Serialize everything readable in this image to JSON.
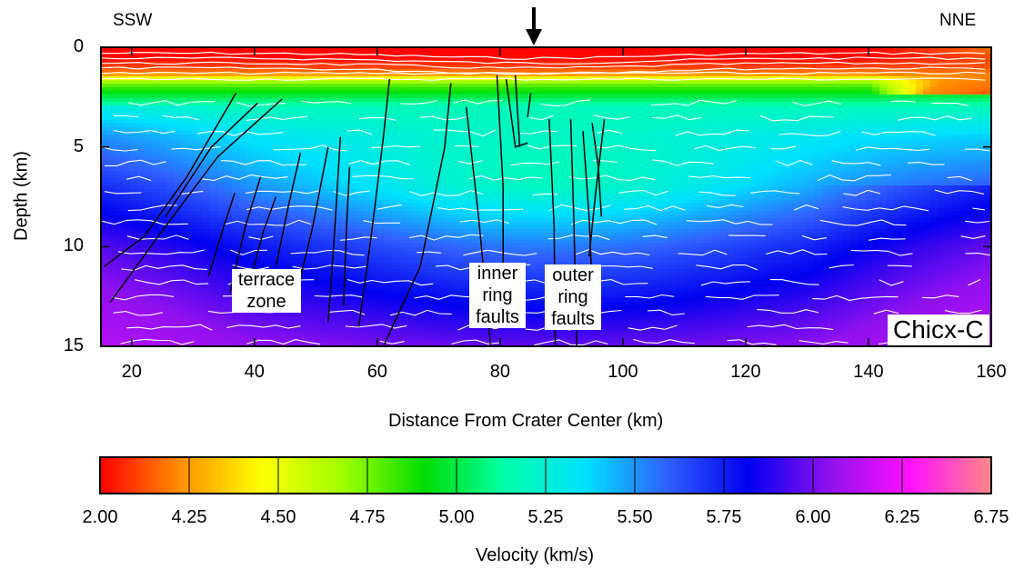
{
  "chart_data": {
    "type": "heatmap",
    "title": "",
    "panel_label": "Chicx-C",
    "direction_left": "SSW",
    "direction_right": "NNE",
    "xlabel": "Distance From Crater Center (km)",
    "ylabel": "Depth (km)",
    "xlim": [
      15,
      160
    ],
    "ylim": [
      15,
      0
    ],
    "x_ticks": [
      20,
      40,
      60,
      80,
      100,
      120,
      140,
      160
    ],
    "y_ticks": [
      0,
      5,
      10,
      15
    ],
    "marker_arrow_x": 85.5,
    "colorbar": {
      "label": "Velocity (km/s)",
      "ticks": [
        "2.00",
        "4.25",
        "4.50",
        "4.75",
        "5.00",
        "5.25",
        "5.50",
        "5.75",
        "6.00",
        "6.25",
        "6.75"
      ],
      "colors": [
        "#ff0000",
        "#ff9000",
        "#ffff00",
        "#a0ff00",
        "#00dd00",
        "#00ffaa",
        "#00e0ff",
        "#3060ff",
        "#0000f0",
        "#9010f0",
        "#ff10ff",
        "#ff8888"
      ]
    },
    "velocity_layers_depth_km": [
      {
        "depth": 0.0,
        "velocity": 2.0
      },
      {
        "depth": 0.5,
        "velocity": 2.1
      },
      {
        "depth": 1.0,
        "velocity": 3.0
      },
      {
        "depth": 1.4,
        "velocity": 4.4
      },
      {
        "depth": 1.8,
        "velocity": 4.8
      },
      {
        "depth": 2.2,
        "velocity": 5.0
      },
      {
        "depth": 3.0,
        "velocity": 5.3
      },
      {
        "depth": 4.5,
        "velocity": 5.55
      },
      {
        "depth": 7.0,
        "velocity": 5.8
      },
      {
        "depth": 10.0,
        "velocity": 6.05
      },
      {
        "depth": 13.0,
        "velocity": 6.2
      },
      {
        "depth": 15.0,
        "velocity": 6.3
      }
    ],
    "annotations": [
      {
        "text_lines": [
          "terrace",
          "zone"
        ],
        "x": 41.5,
        "depth": 12.3
      },
      {
        "text_lines": [
          "inner",
          "ring",
          "faults"
        ],
        "x": 80.0,
        "depth": 12.7
      },
      {
        "text_lines": [
          "outer",
          "ring",
          "faults"
        ],
        "x": 91.5,
        "depth": 12.8
      }
    ],
    "faults_km": [
      [
        [
          15.5,
          11.0
        ],
        [
          22,
          9.5
        ],
        [
          29,
          6.5
        ],
        [
          37,
          2.3
        ]
      ],
      [
        [
          16.5,
          12.8
        ],
        [
          25,
          9.2
        ],
        [
          34,
          5.5
        ],
        [
          44.5,
          2.6
        ]
      ],
      [
        [
          25.5,
          8.5
        ],
        [
          33,
          5.0
        ],
        [
          40.5,
          2.8
        ]
      ],
      [
        [
          32.5,
          11.5
        ],
        [
          35,
          9.0
        ],
        [
          36.8,
          7.3
        ]
      ],
      [
        [
          36.0,
          12.3
        ],
        [
          38.5,
          9.0
        ],
        [
          41,
          6.5
        ]
      ],
      [
        [
          39.5,
          11.5
        ],
        [
          41.5,
          9.2
        ],
        [
          43.5,
          7.5
        ]
      ],
      [
        [
          43.5,
          11.0
        ],
        [
          45.5,
          8.0
        ],
        [
          47.5,
          5.3
        ]
      ],
      [
        [
          47.0,
          12.2
        ],
        [
          49.5,
          9.0
        ],
        [
          52,
          5.0
        ]
      ],
      [
        [
          52.0,
          13.8
        ],
        [
          53,
          9.5
        ],
        [
          54,
          4.5
        ]
      ],
      [
        [
          54.5,
          13.0
        ],
        [
          55,
          9.0
        ],
        [
          55.5,
          6.0
        ]
      ],
      [
        [
          57.0,
          14.0
        ],
        [
          59,
          9.5
        ],
        [
          61,
          4.5
        ],
        [
          62,
          1.6
        ]
      ],
      [
        [
          61.0,
          15.0
        ],
        [
          67,
          11.0
        ],
        [
          71,
          5.0
        ],
        [
          72,
          1.8
        ]
      ],
      [
        [
          74.5,
          3.0
        ],
        [
          76.5,
          8.5
        ],
        [
          78.5,
          15.0
        ]
      ],
      [
        [
          79.5,
          1.4
        ],
        [
          80.5,
          7.0
        ],
        [
          80.5,
          13.0
        ]
      ],
      [
        [
          81.0,
          1.6
        ],
        [
          82.5,
          5.0
        ],
        [
          84.5,
          4.8
        ]
      ],
      [
        [
          82.5,
          1.4
        ],
        [
          83.2,
          5.0
        ]
      ],
      [
        [
          85.0,
          2.3
        ],
        [
          84.5,
          3.5
        ]
      ],
      [
        [
          88.0,
          3.6
        ],
        [
          88.8,
          9.0
        ],
        [
          89,
          15.0
        ]
      ],
      [
        [
          91.5,
          3.6
        ],
        [
          92,
          8.5
        ],
        [
          92.5,
          15.0
        ]
      ],
      [
        [
          93.5,
          4.2
        ],
        [
          94.5,
          8.5
        ],
        [
          95,
          12.0
        ]
      ],
      [
        [
          95.0,
          3.8
        ],
        [
          96,
          6.0
        ],
        [
          96.5,
          8.5
        ]
      ],
      [
        [
          97.0,
          3.6
        ],
        [
          95.5,
          7.5
        ],
        [
          94.5,
          10.5
        ]
      ]
    ]
  }
}
